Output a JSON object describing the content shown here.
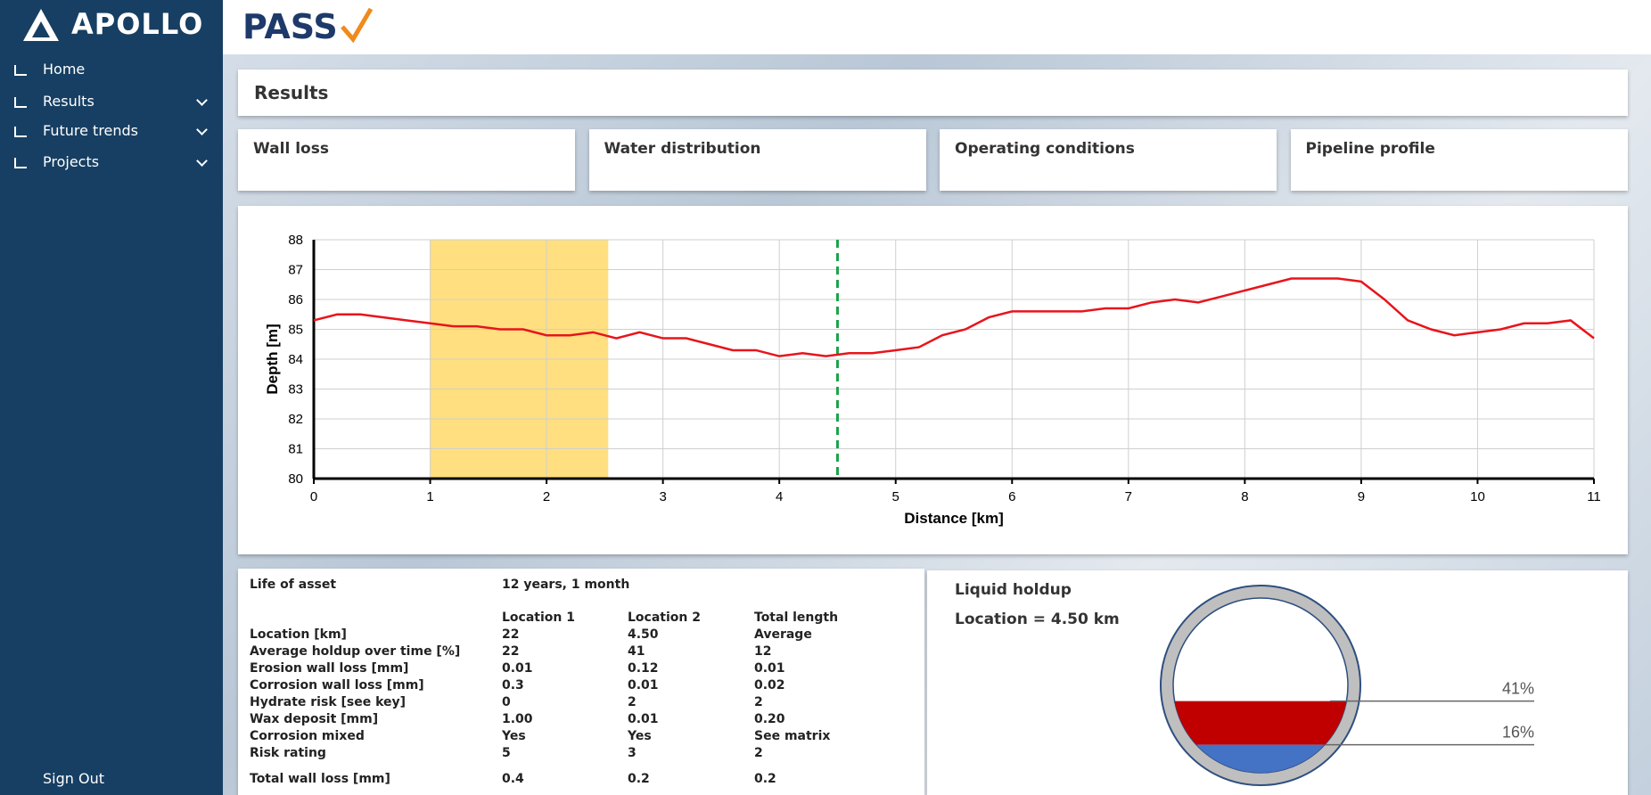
{
  "sidebar": {
    "brand": "APOLLO",
    "nav": [
      "Home",
      "Results",
      "Future trends",
      "Projects"
    ],
    "sign_out": "Sign Out"
  },
  "header": {
    "logo": "PASS"
  },
  "results_title": "Results",
  "tabs": [
    "Wall loss",
    "Water distribution",
    "Operating conditions",
    "Pipeline profile"
  ],
  "chart_data": {
    "type": "line",
    "xlabel": "Distance [km]",
    "ylabel": "Depth [m]",
    "color": "#e8141b",
    "grid": true,
    "x": [
      0,
      0.2,
      0.4,
      0.6,
      0.8,
      1.0,
      1.2,
      1.4,
      1.6,
      1.8,
      2.0,
      2.2,
      2.4,
      2.6,
      2.8,
      3.0,
      3.2,
      3.4,
      3.6,
      3.8,
      4.0,
      4.2,
      4.4,
      4.6,
      4.8,
      5.0,
      5.2,
      5.4,
      5.6,
      5.8,
      6.0,
      6.2,
      6.4,
      6.6,
      6.8,
      7.0,
      7.2,
      7.4,
      7.6,
      7.8,
      8.0,
      8.2,
      8.4,
      8.6,
      8.8,
      9.0,
      9.2,
      9.4,
      9.6,
      9.8,
      10.0,
      10.2,
      10.4,
      10.6,
      10.8,
      11.0
    ],
    "values": [
      85.3,
      85.5,
      85.5,
      85.4,
      85.3,
      85.2,
      85.1,
      85.1,
      85.0,
      85.0,
      84.8,
      84.8,
      84.9,
      84.7,
      84.9,
      84.7,
      84.7,
      84.5,
      84.3,
      84.3,
      84.1,
      84.2,
      84.1,
      84.2,
      84.2,
      84.3,
      84.4,
      84.8,
      85.0,
      85.4,
      85.6,
      85.6,
      85.6,
      85.6,
      85.7,
      85.7,
      85.9,
      86.0,
      85.9,
      86.1,
      86.3,
      86.5,
      86.7,
      86.7,
      86.7,
      86.6,
      86.0,
      85.3,
      85.0,
      84.8,
      84.9,
      85.0,
      85.2,
      85.2,
      85.3,
      84.7
    ],
    "xlim": [
      0,
      11
    ],
    "ylim": [
      80,
      88
    ],
    "xticks": [
      0,
      1,
      2,
      3,
      4,
      5,
      6,
      7,
      8,
      9,
      10,
      11
    ],
    "yticks": [
      80,
      81,
      82,
      83,
      84,
      85,
      86,
      87,
      88
    ],
    "highlight": [
      1,
      2.53
    ],
    "highlight_color": "#ffdf80",
    "marker_x": 4.5,
    "marker_color": "#1aa34a"
  },
  "summary": {
    "life_label": "Life of asset",
    "life_value": "12 years, 1 month",
    "columns": [
      "Location 1",
      "Location 2",
      "Total length"
    ],
    "rows": [
      [
        "Location [km]",
        "22",
        "4.50",
        "Average"
      ],
      [
        "Average holdup over time [%]",
        "22",
        "41",
        "12"
      ],
      [
        "Erosion wall loss [mm]",
        "0.01",
        "0.12",
        "0.01"
      ],
      [
        "Corrosion wall loss [mm]",
        "0.3",
        "0.01",
        "0.02"
      ],
      [
        "Hydrate risk [see key]",
        "0",
        "2",
        "2"
      ],
      [
        "Wax deposit [mm]",
        "1.00",
        "0.01",
        "0.20"
      ],
      [
        "Corrosion mixed",
        "Yes",
        "Yes",
        "See matrix"
      ],
      [
        "Risk rating",
        "5",
        "3",
        "2"
      ]
    ],
    "total": [
      "Total wall loss [mm]",
      "0.4",
      "0.2",
      "0.2"
    ]
  },
  "holdup": {
    "title": "Liquid holdup",
    "location": "Location = 4.50 km",
    "values": [
      41,
      16
    ],
    "value_labels": [
      "41%",
      "16%"
    ],
    "colors": [
      "#c00000",
      "#4472c4"
    ]
  }
}
